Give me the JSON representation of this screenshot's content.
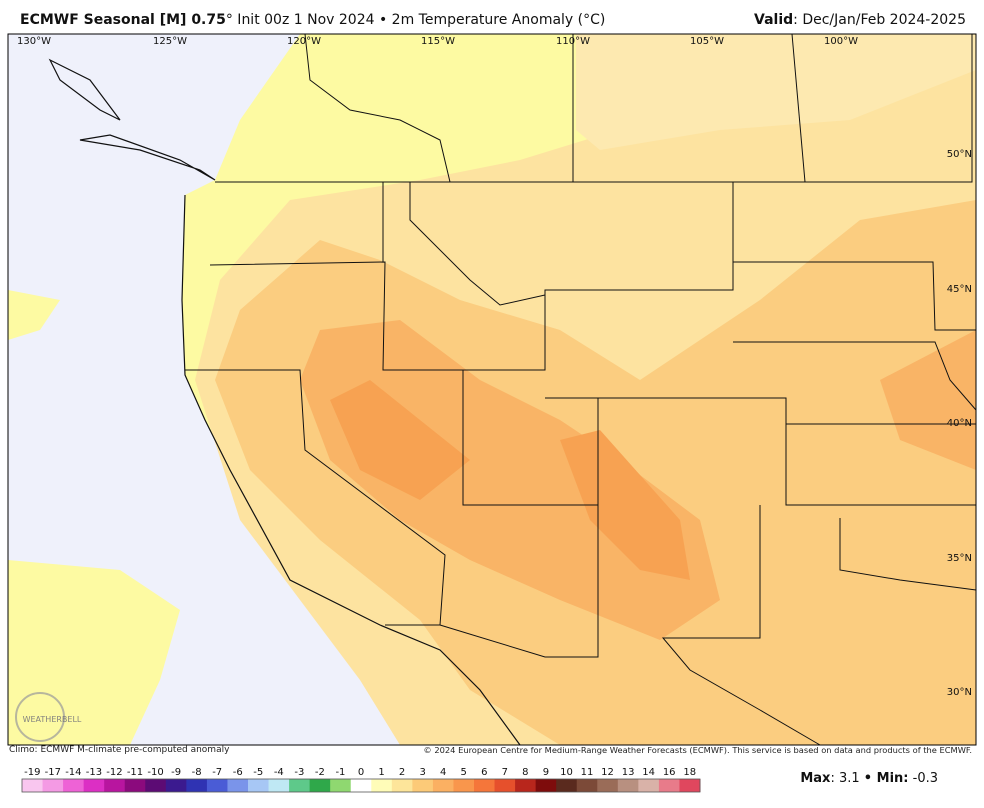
{
  "header": {
    "title_bold": "ECMWF Seasonal [M] 0.75",
    "title_rest": "° Init 00z 1 Nov 2024 • 2m Temperature Anomaly (°C)",
    "valid_label": "Valid",
    "valid": ": Dec/Jan/Feb 2024-2025"
  },
  "map": {
    "longitude_labels": [
      "130°W",
      "125°W",
      "120°W",
      "115°W",
      "110°W",
      "105°W",
      "100°W"
    ],
    "latitude_labels": [
      "50°N",
      "45°N",
      "40°N",
      "35°N",
      "30°N"
    ],
    "logo": "WEATHERBELL"
  },
  "footer": {
    "climo": "Climo: ECMWF M-climate pre-computed anomaly",
    "copyright": "© 2024 European Centre for Medium-Range Weather Forecasts (ECMWF). This service is based on data and products of the ECMWF."
  },
  "colorbar": {
    "labels": [
      -19,
      -17,
      -14,
      -13,
      -12,
      -11,
      -10,
      -9,
      -8,
      -7,
      -6,
      -5,
      -4,
      -3,
      -2,
      -1,
      0,
      1,
      2,
      3,
      4,
      5,
      6,
      7,
      8,
      9,
      10,
      11,
      12,
      13,
      14,
      16,
      18
    ],
    "colors": [
      "#f9c6ef",
      "#f49ae4",
      "#ee62d6",
      "#dc2fc4",
      "#b8159f",
      "#8b0a7d",
      "#5c0b74",
      "#3b1a8f",
      "#2f33b3",
      "#4a5cd6",
      "#7a94ea",
      "#a7c7f5",
      "#bfe8f4",
      "#5ec98a",
      "#2fa84a",
      "#8fd870",
      "#ffffff",
      "#fffcb8",
      "#fde59a",
      "#fcca78",
      "#fbb062",
      "#f9964c",
      "#f5763a",
      "#e6502c",
      "#b8261c",
      "#7e0c0c",
      "#5a2a1e",
      "#7c4a38",
      "#9a6c58",
      "#b89080",
      "#d9b2a8",
      "#e87b8a",
      "#e0475e"
    ]
  },
  "stats": {
    "max_label": "Max",
    "max_sep": ":",
    "max": 3.1,
    "min_sep": "• Min:",
    "min": -0.3
  }
}
